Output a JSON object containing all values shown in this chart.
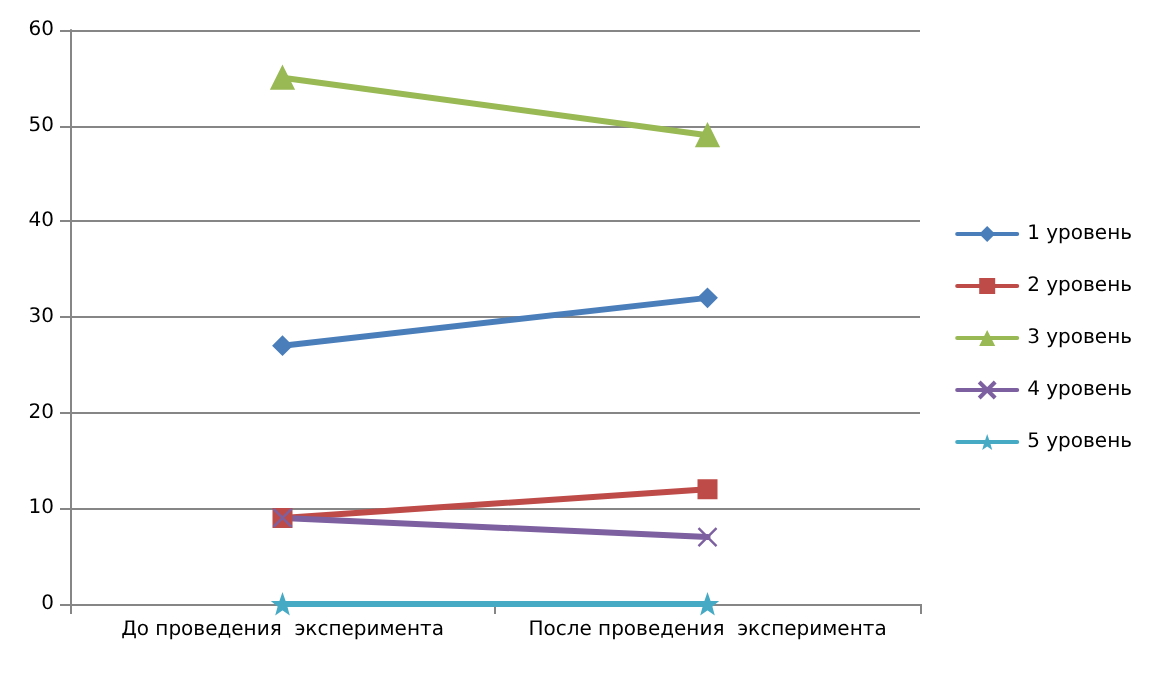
{
  "chart_data": {
    "type": "line",
    "categories": [
      "До проведения  эксперимента",
      "После проведения  эксперимента"
    ],
    "series": [
      {
        "name": "1 уровень",
        "color": "#4a7ebb",
        "marker": "diamond",
        "values": [
          27,
          32
        ]
      },
      {
        "name": "2 уровень",
        "color": "#be4b48",
        "marker": "square",
        "values": [
          9,
          12
        ]
      },
      {
        "name": "3 уровень",
        "color": "#98b954",
        "marker": "triangle",
        "values": [
          55,
          49
        ]
      },
      {
        "name": "4 уровень",
        "color": "#7d60a0",
        "marker": "cross",
        "values": [
          9,
          7
        ]
      },
      {
        "name": "5 уровень",
        "color": "#46aac5",
        "marker": "star",
        "values": [
          0,
          0
        ]
      }
    ],
    "ylim": [
      0,
      60
    ],
    "yticks": [
      0,
      10,
      20,
      30,
      40,
      50,
      60
    ],
    "grid": "y",
    "legend": "right",
    "line_style": "solid"
  }
}
